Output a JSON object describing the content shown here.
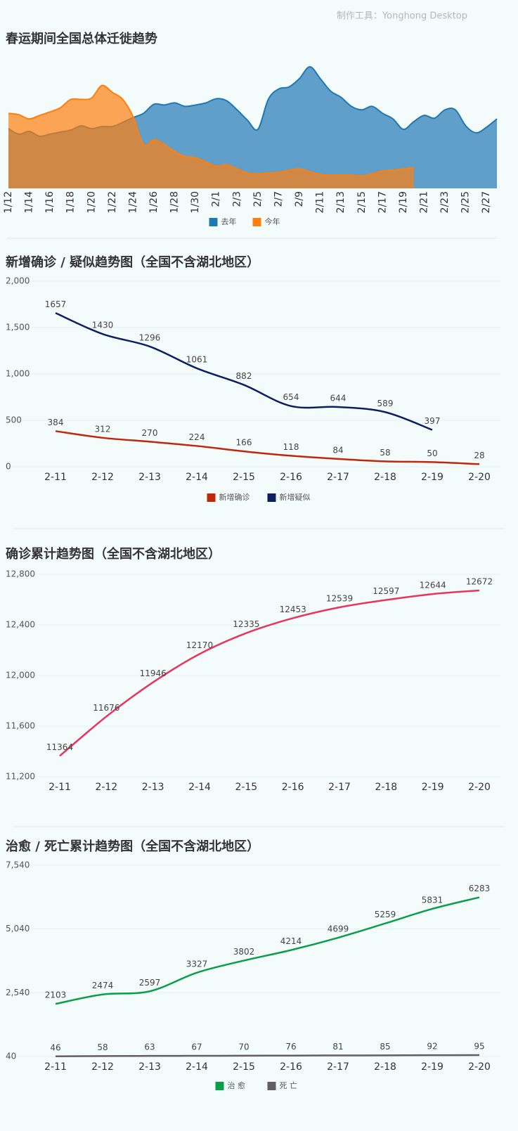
{
  "credit": "制作工具：Yonghong Desktop",
  "chart_data": [
    {
      "type": "area",
      "title": "春运期间全国总体迁徙趋势",
      "categories": [
        "1/12",
        null,
        "1/14",
        null,
        "1/16",
        null,
        "1/18",
        null,
        "1/20",
        null,
        "1/22",
        null,
        "1/24",
        null,
        "1/26",
        null,
        "1/28",
        null,
        "1/30",
        null,
        "2/1",
        null,
        "2/3",
        null,
        "2/5",
        null,
        "2/7",
        null,
        "2/9",
        null,
        "2/11",
        null,
        "2/13",
        null,
        "2/15",
        null,
        "2/17",
        null,
        "2/19",
        null,
        "2/21",
        null,
        "2/23",
        null,
        "2/25",
        null,
        "2/27",
        null
      ],
      "ylim": [
        0,
        180
      ],
      "series": [
        {
          "name": "去年",
          "color": "#1f77b4",
          "values": [
            86,
            78,
            82,
            75,
            78,
            81,
            84,
            90,
            86,
            89,
            89,
            95,
            102,
            108,
            121,
            120,
            123,
            118,
            120,
            123,
            129,
            126,
            113,
            98,
            85,
            128,
            143,
            146,
            158,
            175,
            158,
            140,
            131,
            118,
            113,
            118,
            108,
            100,
            85,
            96,
            105,
            101,
            113,
            113,
            90,
            80,
            88,
            100
          ]
        },
        {
          "name": "今年",
          "color": "#ff7f0e",
          "values": [
            108,
            106,
            100,
            105,
            110,
            116,
            128,
            128,
            130,
            148,
            138,
            128,
            103,
            63,
            70,
            63,
            53,
            46,
            44,
            38,
            32,
            34,
            28,
            22,
            21,
            22,
            23,
            26,
            28,
            24,
            20,
            19,
            19,
            19,
            18,
            21,
            25,
            26,
            28,
            30,
            null,
            null,
            null,
            null,
            null,
            null,
            null,
            null
          ]
        }
      ]
    },
    {
      "type": "line",
      "title": "新增确诊 / 疑似趋势图（全国不含湖北地区）",
      "categories": [
        "2-11",
        "2-12",
        "2-13",
        "2-14",
        "2-15",
        "2-16",
        "2-17",
        "2-18",
        "2-19",
        "2-20"
      ],
      "ylim": [
        0,
        2000
      ],
      "yticks": [
        0,
        500,
        {
          "value": 1000,
          "label": "1,000"
        },
        {
          "value": 1500,
          "label": "1,500"
        },
        {
          "value": 2000,
          "label": "2,000"
        }
      ],
      "grid": true,
      "series": [
        {
          "name": "新增确诊",
          "color": "#c0280c",
          "values": [
            384,
            312,
            270,
            224,
            166,
            118,
            84,
            58,
            50,
            28
          ]
        },
        {
          "name": "新增疑似",
          "color": "#0b1f63",
          "values": [
            1657,
            1430,
            1296,
            1061,
            882,
            654,
            644,
            589,
            397,
            null
          ]
        }
      ]
    },
    {
      "type": "line",
      "title": "确诊累计趋势图（全国不含湖北地区）",
      "categories": [
        "2-11",
        "2-12",
        "2-13",
        "2-14",
        "2-15",
        "2-16",
        "2-17",
        "2-18",
        "2-19",
        "2-20"
      ],
      "ylim": [
        11200,
        12800
      ],
      "yticks": [
        {
          "value": 11200,
          "label": "11,200"
        },
        {
          "value": 11600,
          "label": "11,600"
        },
        {
          "value": 12000,
          "label": "12,000"
        },
        {
          "value": 12400,
          "label": "12,400"
        },
        {
          "value": 12800,
          "label": "12,800"
        }
      ],
      "grid": true,
      "series": [
        {
          "color": "#e8355c",
          "values": [
            11364,
            11676,
            11946,
            12170,
            12335,
            12453,
            12539,
            12597,
            12644,
            12672
          ]
        }
      ]
    },
    {
      "type": "line",
      "title": "治愈 / 死亡累计趋势图（全国不含湖北地区）",
      "categories": [
        "2-11",
        "2-12",
        "2-13",
        "2-14",
        "2-15",
        "2-16",
        "2-17",
        "2-18",
        "2-19",
        "2-20"
      ],
      "ylim": [
        40,
        7540
      ],
      "yticks": [
        40,
        {
          "value": 2540,
          "label": "2,540"
        },
        {
          "value": 5040,
          "label": "5,040"
        },
        {
          "value": 7540,
          "label": "7,540"
        }
      ],
      "grid": true,
      "series": [
        {
          "name": "治 愈",
          "color": "#0a9e4a",
          "values": [
            2103,
            2474,
            2597,
            3327,
            3802,
            4214,
            4699,
            5259,
            5831,
            6283
          ]
        },
        {
          "name": "死 亡",
          "color": "#606060",
          "values": [
            46,
            58,
            63,
            67,
            70,
            76,
            81,
            85,
            92,
            95
          ]
        }
      ]
    }
  ]
}
